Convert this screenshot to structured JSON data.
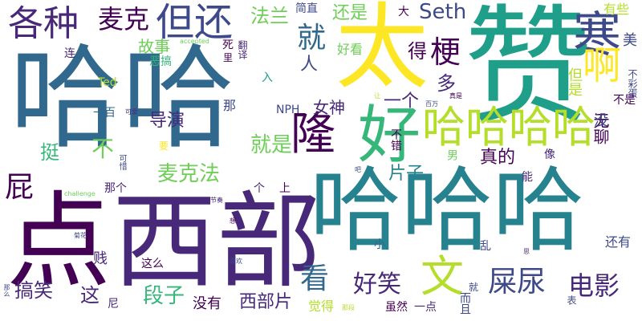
{
  "palette": {
    "deep_purple": "#440154",
    "purple": "#482878",
    "indigo": "#3e4989",
    "slate_blue": "#31688e",
    "teal_blue": "#26828e",
    "teal": "#1f9e89",
    "green": "#35b779",
    "light_green": "#6ece58",
    "lime": "#b5de2b",
    "yellow": "#fde725"
  },
  "words": [
    "哈哈",
    "点",
    "西部",
    "哈哈哈",
    "太",
    "赞",
    "哈哈哈哈",
    "寒",
    "隆",
    "好",
    "各种",
    "但还",
    "就",
    "麦克",
    "法兰",
    "还是",
    "Seth",
    "啊",
    "梗",
    "得",
    "屁",
    "看",
    "文",
    "屎尿",
    "电影",
    "好笑",
    "搞笑",
    "这",
    "段子",
    "没有",
    "西部片",
    "麦克法",
    "不",
    "导演",
    "就是",
    "片子",
    "真的",
    "女神",
    "一个",
    "多",
    "人",
    "故事",
    "恶搞",
    "好看",
    "大",
    "简直",
    "有些",
    "美",
    "但是",
    "不彩蛋",
    "不是",
    "无聊",
    "没",
    "Ted",
    "入",
    "那",
    "NPH",
    "一百",
    "可爱",
    "挺",
    "那个",
    "个",
    "上",
    "challenge",
    "节奏",
    "想",
    "菊花",
    "小",
    "乱",
    "还有",
    "这么",
    "喜欢",
    "贱",
    "尼",
    "觉得",
    "那段",
    "虽然",
    "一点",
    "而且",
    "那么",
    "连",
    "accepted",
    "死",
    "里",
    "翻译",
    "让",
    "真是",
    "百万",
    "不错",
    "男",
    "像",
    "能",
    "吧",
    "可惜",
    "要",
    "思",
    "表",
    "就"
  ]
}
